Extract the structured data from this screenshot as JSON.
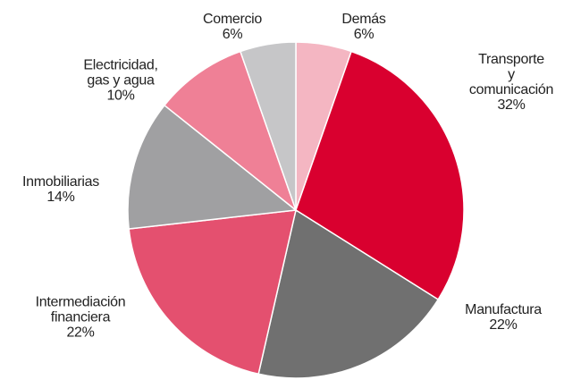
{
  "chart_data": {
    "type": "pie",
    "categories": [
      "Demás",
      "Transporte\ny comunicación",
      "Manufactura",
      "Intermediación\nfinanciera",
      "Inmobiliarias",
      "Electricidad,\ngas y agua",
      "Comercio"
    ],
    "values": [
      6,
      32,
      22,
      22,
      14,
      10,
      6
    ],
    "value_labels": [
      "6%",
      "32%",
      "22%",
      "22%",
      "14%",
      "10%",
      "6%"
    ],
    "colors": [
      "#f4b6c2",
      "#d9002f",
      "#707070",
      "#e4506f",
      "#a0a0a2",
      "#ef8096",
      "#c6c6c8"
    ]
  }
}
